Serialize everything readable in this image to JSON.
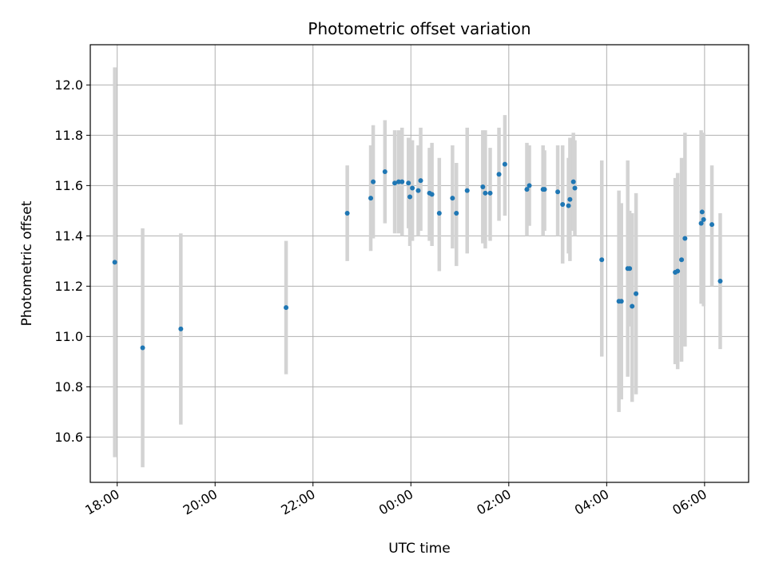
{
  "chart_data": {
    "type": "scatter",
    "title": "Photometric offset variation",
    "xlabel": "UTC time",
    "ylabel": "Photometric offset",
    "x_axis_format": "HH:MM",
    "xlim_hours": [
      -6.55,
      6.9
    ],
    "ylim": [
      10.42,
      12.16
    ],
    "x_tick_hours": [
      -6,
      -4,
      -2,
      0,
      2,
      4,
      6
    ],
    "x_tick_labels": [
      "18:00",
      "20:00",
      "22:00",
      "00:00",
      "02:00",
      "04:00",
      "06:00"
    ],
    "y_ticks": [
      10.6,
      10.8,
      11.0,
      11.2,
      11.4,
      11.6,
      11.8,
      12.0
    ],
    "y_tick_labels": [
      "10.6",
      "10.8",
      "11.0",
      "11.2",
      "11.4",
      "11.6",
      "11.8",
      "12.0"
    ],
    "grid": true,
    "point_color": "#1f77b4",
    "errorbar_color": "#d3d3d3",
    "points": [
      {
        "t": -6.05,
        "y": 11.295,
        "lo": 10.52,
        "hi": 12.07
      },
      {
        "t": -5.48,
        "y": 10.955,
        "lo": 10.48,
        "hi": 11.43
      },
      {
        "t": -4.7,
        "y": 11.03,
        "lo": 10.65,
        "hi": 11.41
      },
      {
        "t": -2.55,
        "y": 11.115,
        "lo": 10.85,
        "hi": 11.38
      },
      {
        "t": -1.3,
        "y": 11.49,
        "lo": 11.3,
        "hi": 11.68
      },
      {
        "t": -0.82,
        "y": 11.55,
        "lo": 11.34,
        "hi": 11.76
      },
      {
        "t": -0.77,
        "y": 11.615,
        "lo": 11.39,
        "hi": 11.84
      },
      {
        "t": -0.53,
        "y": 11.655,
        "lo": 11.45,
        "hi": 11.86
      },
      {
        "t": -0.33,
        "y": 11.61,
        "lo": 11.41,
        "hi": 11.82
      },
      {
        "t": -0.25,
        "y": 11.615,
        "lo": 11.41,
        "hi": 11.82
      },
      {
        "t": -0.18,
        "y": 11.615,
        "lo": 11.4,
        "hi": 11.83
      },
      {
        "t": -0.05,
        "y": 11.61,
        "lo": 11.43,
        "hi": 11.79
      },
      {
        "t": -0.02,
        "y": 11.555,
        "lo": 11.36,
        "hi": 11.79
      },
      {
        "t": 0.03,
        "y": 11.59,
        "lo": 11.38,
        "hi": 11.78
      },
      {
        "t": 0.15,
        "y": 11.58,
        "lo": 11.4,
        "hi": 11.76
      },
      {
        "t": 0.2,
        "y": 11.62,
        "lo": 11.42,
        "hi": 11.83
      },
      {
        "t": 0.38,
        "y": 11.57,
        "lo": 11.38,
        "hi": 11.75
      },
      {
        "t": 0.43,
        "y": 11.565,
        "lo": 11.36,
        "hi": 11.77
      },
      {
        "t": 0.58,
        "y": 11.49,
        "lo": 11.26,
        "hi": 11.71
      },
      {
        "t": 0.85,
        "y": 11.55,
        "lo": 11.35,
        "hi": 11.76
      },
      {
        "t": 0.93,
        "y": 11.49,
        "lo": 11.28,
        "hi": 11.69
      },
      {
        "t": 1.15,
        "y": 11.58,
        "lo": 11.33,
        "hi": 11.83
      },
      {
        "t": 1.47,
        "y": 11.595,
        "lo": 11.37,
        "hi": 11.82
      },
      {
        "t": 1.52,
        "y": 11.57,
        "lo": 11.35,
        "hi": 11.82
      },
      {
        "t": 1.62,
        "y": 11.57,
        "lo": 11.38,
        "hi": 11.75
      },
      {
        "t": 1.8,
        "y": 11.645,
        "lo": 11.46,
        "hi": 11.83
      },
      {
        "t": 1.92,
        "y": 11.685,
        "lo": 11.48,
        "hi": 11.88
      },
      {
        "t": 2.37,
        "y": 11.585,
        "lo": 11.4,
        "hi": 11.77
      },
      {
        "t": 2.42,
        "y": 11.6,
        "lo": 11.44,
        "hi": 11.76
      },
      {
        "t": 2.7,
        "y": 11.585,
        "lo": 11.4,
        "hi": 11.76
      },
      {
        "t": 2.73,
        "y": 11.585,
        "lo": 11.42,
        "hi": 11.74
      },
      {
        "t": 3.0,
        "y": 11.575,
        "lo": 11.4,
        "hi": 11.76
      },
      {
        "t": 3.1,
        "y": 11.525,
        "lo": 11.29,
        "hi": 11.76
      },
      {
        "t": 3.22,
        "y": 11.52,
        "lo": 11.33,
        "hi": 11.71
      },
      {
        "t": 3.25,
        "y": 11.545,
        "lo": 11.3,
        "hi": 11.79
      },
      {
        "t": 3.32,
        "y": 11.615,
        "lo": 11.42,
        "hi": 11.81
      },
      {
        "t": 3.35,
        "y": 11.59,
        "lo": 11.4,
        "hi": 11.78
      },
      {
        "t": 3.9,
        "y": 11.305,
        "lo": 10.92,
        "hi": 11.7
      },
      {
        "t": 4.25,
        "y": 11.14,
        "lo": 10.7,
        "hi": 11.58
      },
      {
        "t": 4.3,
        "y": 11.14,
        "lo": 10.75,
        "hi": 11.53
      },
      {
        "t": 4.43,
        "y": 11.27,
        "lo": 10.84,
        "hi": 11.7
      },
      {
        "t": 4.47,
        "y": 11.27,
        "lo": 11.04,
        "hi": 11.5
      },
      {
        "t": 4.52,
        "y": 11.12,
        "lo": 10.74,
        "hi": 11.49
      },
      {
        "t": 4.6,
        "y": 11.17,
        "lo": 10.77,
        "hi": 11.57
      },
      {
        "t": 5.4,
        "y": 11.255,
        "lo": 10.89,
        "hi": 11.63
      },
      {
        "t": 5.45,
        "y": 11.26,
        "lo": 10.87,
        "hi": 11.65
      },
      {
        "t": 5.53,
        "y": 11.305,
        "lo": 10.9,
        "hi": 11.71
      },
      {
        "t": 5.6,
        "y": 11.39,
        "lo": 10.96,
        "hi": 11.81
      },
      {
        "t": 5.93,
        "y": 11.45,
        "lo": 11.13,
        "hi": 11.82
      },
      {
        "t": 5.95,
        "y": 11.495,
        "lo": 11.18,
        "hi": 11.81
      },
      {
        "t": 5.98,
        "y": 11.465,
        "lo": 11.12,
        "hi": 11.81
      },
      {
        "t": 6.15,
        "y": 11.445,
        "lo": 11.2,
        "hi": 11.68
      },
      {
        "t": 6.32,
        "y": 11.22,
        "lo": 10.95,
        "hi": 11.49
      }
    ]
  }
}
